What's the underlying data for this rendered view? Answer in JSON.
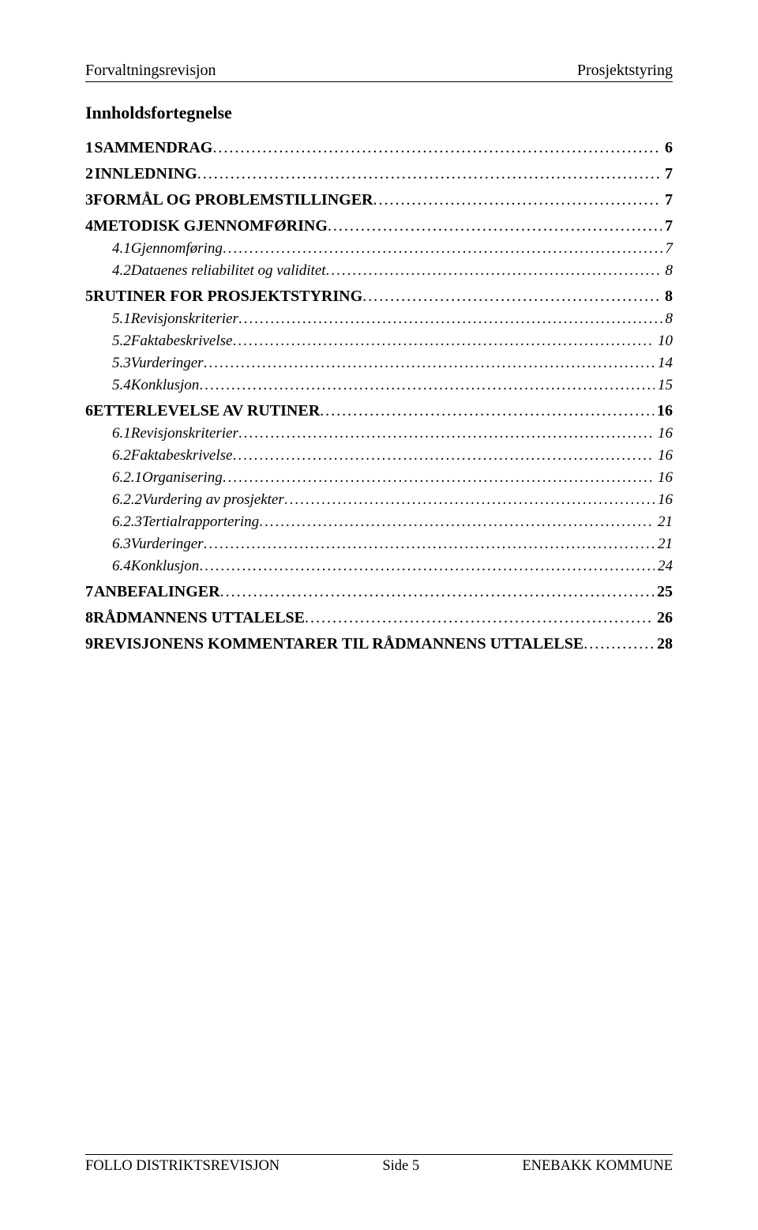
{
  "header": {
    "left": "Forvaltningsrevisjon",
    "right": "Prosjektstyring"
  },
  "toc_title": "Innholdsfortegnelse",
  "dots": "....................................................................................................................................................................................................................................................",
  "toc": [
    {
      "level": 0,
      "num": "1",
      "label": "SAMMENDRAG",
      "page": "6",
      "bold": true
    },
    {
      "level": 0,
      "num": "2",
      "label": "INNLEDNING",
      "page": "7",
      "bold": true
    },
    {
      "level": 0,
      "num": "3",
      "label": "FORMÅL OG PROBLEMSTILLINGER",
      "page": "7",
      "bold": true
    },
    {
      "level": 0,
      "num": "4",
      "label": "METODISK GJENNOMFØRING",
      "page": "7",
      "bold": true
    },
    {
      "level": 1,
      "num": "4.1",
      "label": "Gjennomføring",
      "page": "7",
      "italic": true
    },
    {
      "level": 1,
      "num": "4.2",
      "label": "Dataenes reliabilitet og validitet",
      "page": "8",
      "italic": true
    },
    {
      "level": 0,
      "num": "5",
      "label": "RUTINER FOR PROSJEKTSTYRING",
      "page": "8",
      "bold": true
    },
    {
      "level": 1,
      "num": "5.1",
      "label": "Revisjonskriterier",
      "page": "8",
      "italic": true
    },
    {
      "level": 1,
      "num": "5.2",
      "label": "Faktabeskrivelse",
      "page": "10",
      "italic": true
    },
    {
      "level": 1,
      "num": "5.3",
      "label": "Vurderinger",
      "page": "14",
      "italic": true
    },
    {
      "level": 1,
      "num": "5.4",
      "label": "Konklusjon",
      "page": "15",
      "italic": true
    },
    {
      "level": 0,
      "num": "6",
      "label": "ETTERLEVELSE AV RUTINER",
      "page": "16",
      "bold": true
    },
    {
      "level": 1,
      "num": "6.1",
      "label": "Revisjonskriterier",
      "page": "16",
      "italic": true
    },
    {
      "level": 1,
      "num": "6.2",
      "label": "Faktabeskrivelse",
      "page": "16",
      "italic": true
    },
    {
      "level": 2,
      "num": "6.2.1",
      "label": "Organisering",
      "page": "16",
      "italic": true
    },
    {
      "level": 2,
      "num": "6.2.2",
      "label": "Vurdering av prosjekter",
      "page": "16",
      "italic": true
    },
    {
      "level": 2,
      "num": "6.2.3",
      "label": "Tertialrapportering",
      "page": "21",
      "italic": true
    },
    {
      "level": 1,
      "num": "6.3",
      "label": "Vurderinger",
      "page": "21",
      "italic": true
    },
    {
      "level": 1,
      "num": "6.4",
      "label": "Konklusjon",
      "page": "24",
      "italic": true
    },
    {
      "level": 0,
      "num": "7",
      "label": "ANBEFALINGER",
      "page": "25",
      "bold": true
    },
    {
      "level": 0,
      "num": "8",
      "label": "RÅDMANNENS UTTALELSE",
      "page": "26",
      "bold": true
    },
    {
      "level": 0,
      "num": "9",
      "label": "REVISJONENS KOMMENTARER TIL RÅDMANNENS UTTALELSE",
      "page": "28",
      "bold": true
    }
  ],
  "footer": {
    "left": "FOLLO DISTRIKTSREVISJON",
    "center": "Side 5",
    "right": "ENEBAKK KOMMUNE"
  }
}
